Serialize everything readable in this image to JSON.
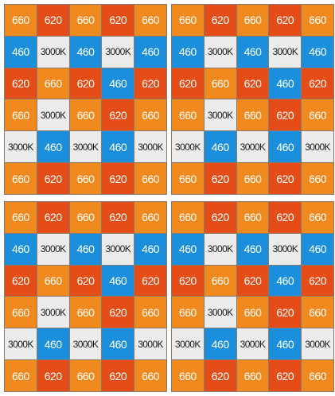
{
  "colors": {
    "660": "#f08a1e",
    "620": "#e44d18",
    "460": "#1b8fdc",
    "3000K": "#ececec",
    "grid_line": "#8a7a6e"
  },
  "panels": [
    {
      "rows": [
        [
          "660",
          "620",
          "660",
          "620",
          "660"
        ],
        [
          "460",
          "3000K",
          "460",
          "3000K",
          "460"
        ],
        [
          "620",
          "660",
          "620",
          "460",
          "620"
        ],
        [
          "660",
          "3000K",
          "660",
          "620",
          "660"
        ],
        [
          "3000K",
          "460",
          "3000K",
          "460",
          "3000K"
        ],
        [
          "660",
          "620",
          "660",
          "620",
          "660"
        ]
      ]
    },
    {
      "rows": [
        [
          "660",
          "620",
          "660",
          "620",
          "660"
        ],
        [
          "460",
          "3000K",
          "460",
          "3000K",
          "460"
        ],
        [
          "620",
          "660",
          "620",
          "460",
          "620"
        ],
        [
          "660",
          "3000K",
          "660",
          "620",
          "660"
        ],
        [
          "3000K",
          "460",
          "3000K",
          "460",
          "3000K"
        ],
        [
          "660",
          "620",
          "660",
          "620",
          "660"
        ]
      ]
    },
    {
      "rows": [
        [
          "660",
          "620",
          "660",
          "620",
          "660"
        ],
        [
          "460",
          "3000K",
          "460",
          "3000K",
          "460"
        ],
        [
          "620",
          "660",
          "620",
          "460",
          "620"
        ],
        [
          "660",
          "3000K",
          "660",
          "620",
          "660"
        ],
        [
          "3000K",
          "460",
          "3000K",
          "460",
          "3000K"
        ],
        [
          "660",
          "620",
          "660",
          "620",
          "660"
        ]
      ]
    },
    {
      "rows": [
        [
          "660",
          "620",
          "660",
          "620",
          "660"
        ],
        [
          "460",
          "3000K",
          "460",
          "3000K",
          "460"
        ],
        [
          "620",
          "660",
          "620",
          "460",
          "620"
        ],
        [
          "660",
          "3000K",
          "660",
          "620",
          "660"
        ],
        [
          "3000K",
          "460",
          "3000K",
          "460",
          "3000K"
        ],
        [
          "660",
          "620",
          "660",
          "620",
          "660"
        ]
      ]
    }
  ]
}
